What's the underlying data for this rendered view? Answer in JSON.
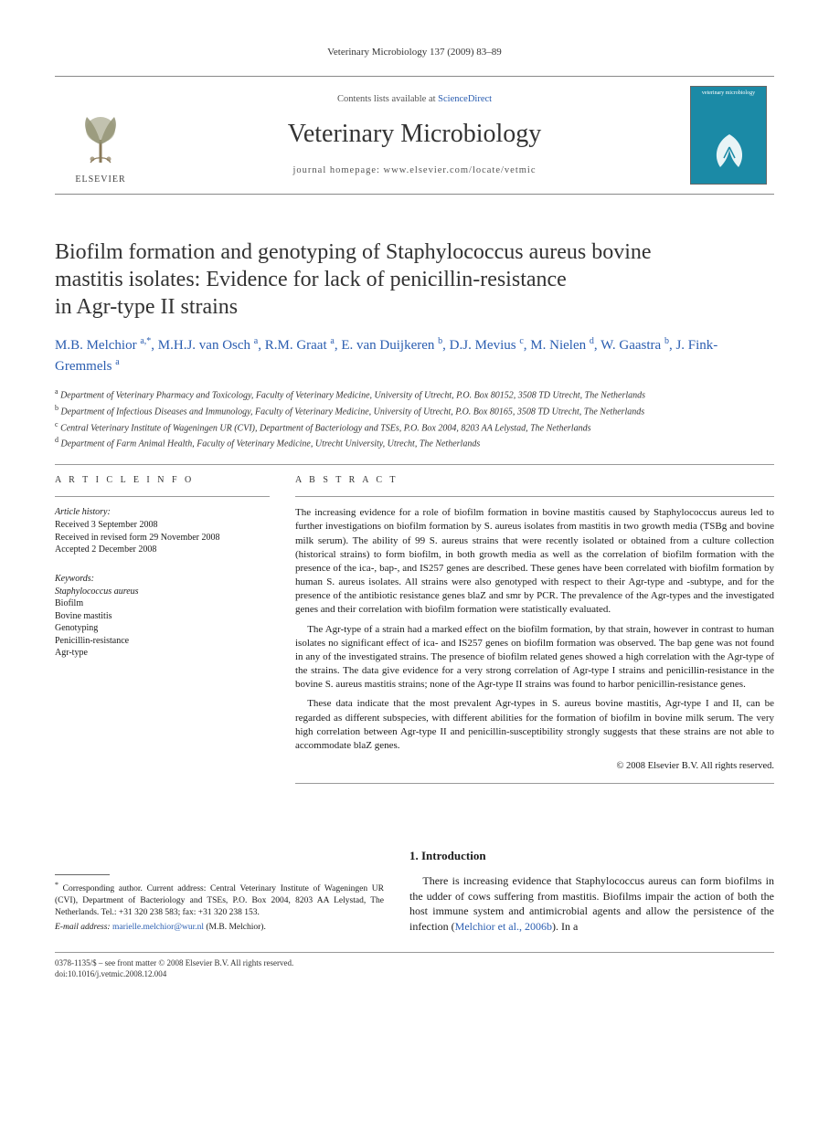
{
  "running_head": "Veterinary Microbiology 137 (2009) 83–89",
  "masthead": {
    "contents_prefix": "Contents lists available at ",
    "contents_link": "ScienceDirect",
    "journal": "Veterinary Microbiology",
    "homepage_label": "journal homepage: www.elsevier.com/locate/vetmic",
    "publisher": "ELSEVIER",
    "cover_label": "veterinary microbiology"
  },
  "title_lines": [
    "Biofilm formation and genotyping of Staphylococcus aureus bovine",
    "mastitis isolates: Evidence for lack of penicillin-resistance",
    "in Agr-type II strains"
  ],
  "authors_html": "M.B. Melchior <sup>a,*</sup>, M.H.J. van Osch <sup>a</sup>, R.M. Graat <sup>a</sup>, E. van Duijkeren <sup>b</sup>, D.J. Mevius <sup>c</sup>, M. Nielen <sup>d</sup>, W. Gaastra <sup>b</sup>, J. Fink-Gremmels <sup>a</sup>",
  "affiliations": [
    {
      "marker": "a",
      "text": "Department of Veterinary Pharmacy and Toxicology, Faculty of Veterinary Medicine, University of Utrecht, P.O. Box 80152, 3508 TD Utrecht, The Netherlands"
    },
    {
      "marker": "b",
      "text": "Department of Infectious Diseases and Immunology, Faculty of Veterinary Medicine, University of Utrecht, P.O. Box 80165, 3508 TD Utrecht, The Netherlands"
    },
    {
      "marker": "c",
      "text": "Central Veterinary Institute of Wageningen UR (CVI), Department of Bacteriology and TSEs, P.O. Box 2004, 8203 AA Lelystad, The Netherlands"
    },
    {
      "marker": "d",
      "text": "Department of Farm Animal Health, Faculty of Veterinary Medicine, Utrecht University, Utrecht, The Netherlands"
    }
  ],
  "article_info": {
    "heading": "A R T I C L E   I N F O",
    "history_label": "Article history:",
    "history": [
      "Received 3 September 2008",
      "Received in revised form 29 November 2008",
      "Accepted 2 December 2008"
    ],
    "keywords_label": "Keywords:",
    "keywords": [
      "Staphylococcus aureus",
      "Biofilm",
      "Bovine mastitis",
      "Genotyping",
      "Penicillin-resistance",
      "Agr-type"
    ]
  },
  "abstract": {
    "heading": "A B S T R A C T",
    "paragraphs": [
      "The increasing evidence for a role of biofilm formation in bovine mastitis caused by Staphylococcus aureus led to further investigations on biofilm formation by S. aureus isolates from mastitis in two growth media (TSBg and bovine milk serum). The ability of 99 S. aureus strains that were recently isolated or obtained from a culture collection (historical strains) to form biofilm, in both growth media as well as the correlation of biofilm formation with the presence of the ica-, bap-, and IS257 genes are described. These genes have been correlated with biofilm formation by human S. aureus isolates. All strains were also genotyped with respect to their Agr-type and -subtype, and for the presence of the antibiotic resistance genes blaZ and smr by PCR. The prevalence of the Agr-types and the investigated genes and their correlation with biofilm formation were statistically evaluated.",
      "The Agr-type of a strain had a marked effect on the biofilm formation, by that strain, however in contrast to human isolates no significant effect of ica- and IS257 genes on biofilm formation was observed. The bap gene was not found in any of the investigated strains. The presence of biofilm related genes showed a high correlation with the Agr-type of the strains. The data give evidence for a very strong correlation of Agr-type I strains and penicillin-resistance in the bovine S. aureus mastitis strains; none of the Agr-type II strains was found to harbor penicillin-resistance genes.",
      "These data indicate that the most prevalent Agr-types in S. aureus bovine mastitis, Agr-type I and II, can be regarded as different subspecies, with different abilities for the formation of biofilm in bovine milk serum. The very high correlation between Agr-type II and penicillin-susceptibility strongly suggests that these strains are not able to accommodate blaZ genes."
    ],
    "copyright": "© 2008 Elsevier B.V. All rights reserved."
  },
  "introduction": {
    "number": "1.",
    "heading": "Introduction",
    "paragraph": "There is increasing evidence that Staphylococcus aureus can form biofilms in the udder of cows suffering from mastitis. Biofilms impair the action of both the host immune system and antimicrobial agents and allow the persistence of the infection (",
    "ref_link": "Melchior et al., 2006b",
    "paragraph_tail": "). In a"
  },
  "corresponding": {
    "marker": "*",
    "text": "Corresponding author. Current address: Central Veterinary Institute of Wageningen UR (CVI), Department of Bacteriology and TSEs, P.O. Box 2004, 8203 AA Lelystad, The Netherlands. Tel.: +31 320 238 583; fax: +31 320 238 153.",
    "email_label": "E-mail address:",
    "email": "marielle.melchior@wur.nl",
    "email_suffix": "(M.B. Melchior)."
  },
  "footer": {
    "line1": "0378-1135/$ – see front matter © 2008 Elsevier B.V. All rights reserved.",
    "line2": "doi:10.1016/j.vetmic.2008.12.004"
  },
  "colors": {
    "link": "#2a5db0",
    "rule": "#999999",
    "cover_bg": "#1b8aa6"
  }
}
